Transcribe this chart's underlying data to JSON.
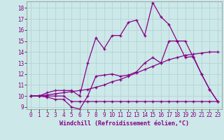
{
  "xlabel": "Windchill (Refroidissement éolien,°C)",
  "bg_color": "#cce8e8",
  "line_color": "#880088",
  "xlim": [
    -0.5,
    23.5
  ],
  "ylim": [
    8.8,
    18.6
  ],
  "yticks": [
    9,
    10,
    11,
    12,
    13,
    14,
    15,
    16,
    17,
    18
  ],
  "xticks": [
    0,
    1,
    2,
    3,
    4,
    5,
    6,
    7,
    8,
    9,
    10,
    11,
    12,
    13,
    14,
    15,
    16,
    17,
    18,
    19,
    20,
    21,
    22,
    23
  ],
  "line1_x": [
    0,
    1,
    2,
    3,
    4,
    5,
    6,
    7,
    8,
    9,
    10,
    11,
    12,
    13,
    14,
    15,
    16,
    17,
    18,
    19,
    20,
    21,
    22,
    23
  ],
  "line1_y": [
    10,
    10,
    9.9,
    9.7,
    9.7,
    9.0,
    8.8,
    10.0,
    11.8,
    11.9,
    12.0,
    11.8,
    11.9,
    12.2,
    13.0,
    13.5,
    13.0,
    15.0,
    15.0,
    13.5,
    13.6,
    12.0,
    10.6,
    9.5
  ],
  "line2_x": [
    0,
    1,
    2,
    3,
    4,
    5,
    6,
    7,
    8,
    9,
    10,
    11,
    12,
    13,
    14,
    15,
    16,
    17,
    18,
    19,
    20,
    21,
    22,
    23
  ],
  "line2_y": [
    10,
    10,
    10.1,
    10.2,
    10.3,
    10.4,
    10.5,
    10.6,
    10.8,
    11.0,
    11.3,
    11.5,
    11.8,
    12.1,
    12.4,
    12.7,
    13.0,
    13.3,
    13.5,
    13.7,
    13.8,
    13.9,
    14.0,
    14.0
  ],
  "line3_x": [
    0,
    1,
    2,
    3,
    4,
    5,
    6,
    7,
    8,
    9,
    10,
    11,
    12,
    13,
    14,
    15,
    16,
    17,
    18,
    19,
    20,
    21,
    22,
    23
  ],
  "line3_y": [
    10,
    10,
    10,
    10,
    10,
    9.5,
    9.5,
    9.5,
    9.5,
    9.5,
    9.5,
    9.5,
    9.5,
    9.5,
    9.5,
    9.5,
    9.5,
    9.5,
    9.5,
    9.5,
    9.5,
    9.5,
    9.5,
    9.5
  ],
  "line4_x": [
    0,
    1,
    2,
    3,
    4,
    5,
    6,
    7,
    8,
    9,
    10,
    11,
    12,
    13,
    14,
    15,
    16,
    17,
    18,
    19,
    20,
    21,
    22,
    23
  ],
  "line4_y": [
    10,
    10,
    10.3,
    10.5,
    10.5,
    10.5,
    10.0,
    13.0,
    15.3,
    14.3,
    15.5,
    15.5,
    16.7,
    16.9,
    15.5,
    18.5,
    17.2,
    16.5,
    15.0,
    15.0,
    13.5,
    12.0,
    10.6,
    9.5
  ],
  "grid_color": "#b0d0d0",
  "spine_color": "#888888",
  "xlabel_fontsize": 6,
  "tick_fontsize": 5.5
}
